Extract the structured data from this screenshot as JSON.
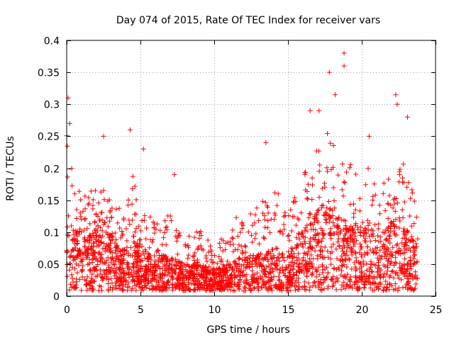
{
  "chart_data": {
    "type": "scatter",
    "title": "Day 074 of 2015, Rate Of TEC Index for receiver vars",
    "xlabel": "GPS time / hours",
    "ylabel": "ROTI / TECUs",
    "xlim": [
      0,
      25
    ],
    "ylim": [
      0,
      0.4
    ],
    "x_ticks": [
      0,
      5,
      10,
      15,
      20,
      25
    ],
    "x_tick_labels": [
      "0",
      "5",
      "10",
      "15",
      "20",
      "25"
    ],
    "y_ticks": [
      0,
      0.05,
      0.1,
      0.15,
      0.2,
      0.25,
      0.3,
      0.35,
      0.4
    ],
    "y_tick_labels": [
      "0",
      "0.05",
      "0.1",
      "0.15",
      "0.2",
      "0.25",
      "0.3",
      "0.35",
      "0.4"
    ],
    "grid": true,
    "marker": "plus",
    "color": "#ff0000",
    "envelope": {
      "description_hours": [
        0,
        0.5,
        1,
        1.5,
        2,
        2.5,
        3,
        3.5,
        4,
        4.5,
        5,
        6,
        7,
        8,
        9,
        10,
        11,
        12,
        13,
        14,
        15,
        15.5,
        16,
        16.5,
        17,
        17.5,
        18,
        18.5,
        19,
        19.5,
        20,
        20.5,
        21,
        21.5,
        22,
        22.5,
        23,
        23.5,
        23.8
      ],
      "typical_max": [
        0.25,
        0.18,
        0.16,
        0.17,
        0.17,
        0.2,
        0.14,
        0.13,
        0.13,
        0.2,
        0.13,
        0.11,
        0.12,
        0.08,
        0.1,
        0.07,
        0.1,
        0.13,
        0.13,
        0.17,
        0.12,
        0.15,
        0.18,
        0.22,
        0.22,
        0.24,
        0.26,
        0.2,
        0.22,
        0.18,
        0.2,
        0.2,
        0.16,
        0.18,
        0.2,
        0.22,
        0.2,
        0.15,
        0.12
      ],
      "typical_mean": [
        0.08,
        0.07,
        0.07,
        0.07,
        0.08,
        0.08,
        0.06,
        0.05,
        0.05,
        0.06,
        0.05,
        0.04,
        0.04,
        0.03,
        0.03,
        0.025,
        0.03,
        0.04,
        0.04,
        0.05,
        0.04,
        0.06,
        0.07,
        0.09,
        0.09,
        0.1,
        0.1,
        0.08,
        0.08,
        0.07,
        0.08,
        0.08,
        0.06,
        0.07,
        0.08,
        0.08,
        0.07,
        0.06,
        0.05
      ]
    },
    "spikes": [
      {
        "x": 0.1,
        "y": 0.31
      },
      {
        "x": 0.2,
        "y": 0.27
      },
      {
        "x": 2.5,
        "y": 0.25
      },
      {
        "x": 4.3,
        "y": 0.26
      },
      {
        "x": 5.2,
        "y": 0.23
      },
      {
        "x": 7.3,
        "y": 0.19
      },
      {
        "x": 13.5,
        "y": 0.24
      },
      {
        "x": 16.5,
        "y": 0.29
      },
      {
        "x": 17.1,
        "y": 0.29
      },
      {
        "x": 17.8,
        "y": 0.35
      },
      {
        "x": 18.2,
        "y": 0.315
      },
      {
        "x": 18.8,
        "y": 0.38
      },
      {
        "x": 18.8,
        "y": 0.36
      },
      {
        "x": 22.3,
        "y": 0.315
      },
      {
        "x": 22.4,
        "y": 0.3
      },
      {
        "x": 23.1,
        "y": 0.28
      },
      {
        "x": 20.5,
        "y": 0.25
      }
    ]
  }
}
